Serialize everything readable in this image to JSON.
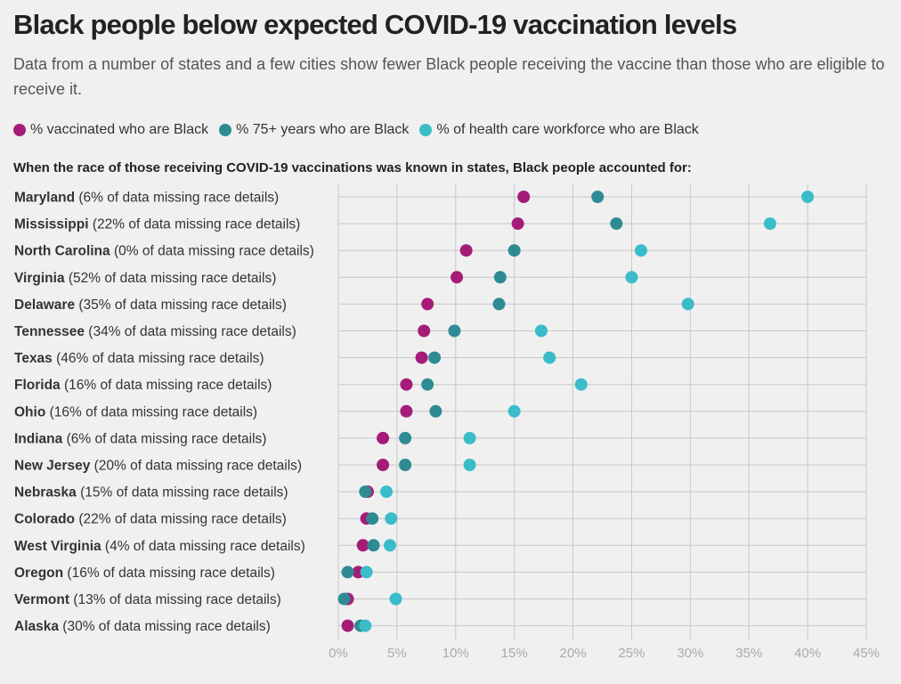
{
  "title": "Black people below expected COVID-19 vaccination levels",
  "subtitle": "Data from a number of states and a few cities show fewer Black people receiving the vaccine than those who are eligible to receive it.",
  "intro": "When the race of those receiving COVID-19 vaccinations was known in states, Black people accounted for:",
  "chart_data": {
    "type": "scatter",
    "title": "Black people below expected COVID-19 vaccination levels",
    "xlim": [
      0,
      45
    ],
    "x_ticks": [
      "0%",
      "5%",
      "10%",
      "15%",
      "20%",
      "25%",
      "30%",
      "35%",
      "40%",
      "45%"
    ],
    "grid": true,
    "legend_position": "top-left",
    "series": [
      {
        "name": "% vaccinated who are Black",
        "color": "#a51c78"
      },
      {
        "name": "% 75+ years who are Black",
        "color": "#2e8b93"
      },
      {
        "name": "% of health care workforce who are Black",
        "color": "#3bbcc9"
      }
    ],
    "rows": [
      {
        "state": "Maryland",
        "note": "(6% of data missing race details)",
        "values": [
          15.8,
          22.1,
          40.0
        ]
      },
      {
        "state": "Mississippi",
        "note": "(22% of data missing race details)",
        "values": [
          15.3,
          23.7,
          36.8
        ]
      },
      {
        "state": "North Carolina",
        "note": "(0% of data missing race details)",
        "values": [
          10.9,
          15.0,
          25.8
        ]
      },
      {
        "state": "Virginia",
        "note": "(52% of data missing race details)",
        "values": [
          10.1,
          13.8,
          25.0
        ]
      },
      {
        "state": "Delaware",
        "note": "(35% of data missing race details)",
        "values": [
          7.6,
          13.7,
          29.8
        ]
      },
      {
        "state": "Tennessee",
        "note": "(34% of data missing race details)",
        "values": [
          7.3,
          9.9,
          17.3
        ]
      },
      {
        "state": "Texas",
        "note": "(46% of data missing race details)",
        "values": [
          7.1,
          8.2,
          18.0
        ]
      },
      {
        "state": "Florida",
        "note": "(16% of data missing race details)",
        "values": [
          5.8,
          7.6,
          20.7
        ]
      },
      {
        "state": "Ohio",
        "note": "(16% of data missing race details)",
        "values": [
          5.8,
          8.3,
          15.0
        ]
      },
      {
        "state": "Indiana",
        "note": "(6% of data missing race details)",
        "values": [
          3.8,
          5.7,
          11.2
        ]
      },
      {
        "state": "New Jersey",
        "note": "(20% of data missing race details)",
        "values": [
          3.8,
          5.7,
          11.2
        ]
      },
      {
        "state": "Nebraska",
        "note": "(15% of data missing race details)",
        "values": [
          2.5,
          2.3,
          4.1
        ]
      },
      {
        "state": "Colorado",
        "note": "(22% of data missing race details)",
        "values": [
          2.4,
          2.9,
          4.5
        ]
      },
      {
        "state": "West Virginia",
        "note": "(4% of data missing race details)",
        "values": [
          2.1,
          3.0,
          4.4
        ]
      },
      {
        "state": "Oregon",
        "note": "(16% of data missing race details)",
        "values": [
          1.7,
          0.8,
          2.4
        ]
      },
      {
        "state": "Vermont",
        "note": "(13% of data missing race details)",
        "values": [
          0.8,
          0.5,
          4.9
        ]
      },
      {
        "state": "Alaska",
        "note": "(30% of data missing race details)",
        "values": [
          0.8,
          1.9,
          2.3
        ]
      }
    ]
  }
}
